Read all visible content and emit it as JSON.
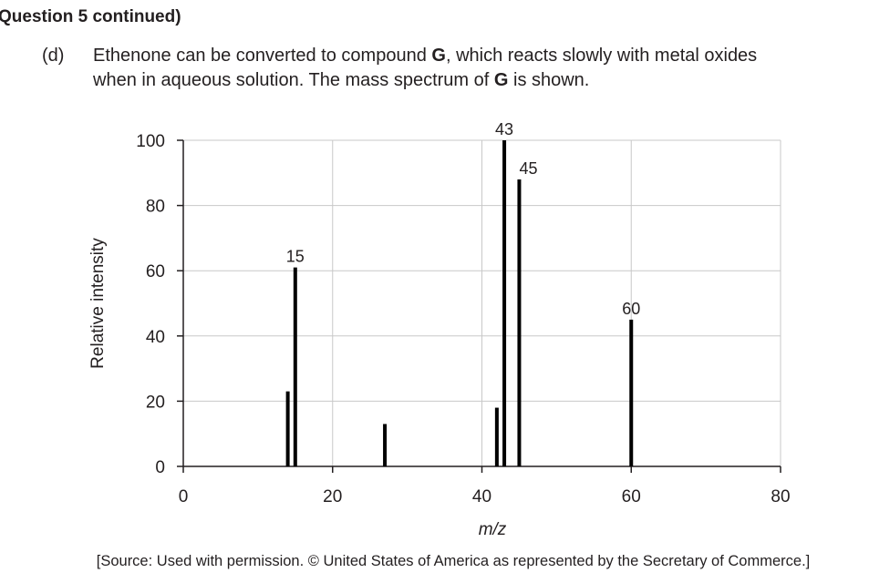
{
  "header": "Question 5 continued)",
  "question": {
    "label": "(d)",
    "lines": [
      [
        "Ethenone can be converted to compound ",
        "G",
        ", which reacts slowly with metal oxides"
      ],
      [
        "when in aqueous solution. The mass spectrum of ",
        "G",
        " is shown."
      ]
    ]
  },
  "source": "[Source: Used with permission. © United States of America as represented by the Secretary of Commerce.]",
  "chart_data": {
    "type": "bar",
    "x": [
      14,
      15,
      27,
      42,
      43,
      45,
      60
    ],
    "values": [
      23,
      61,
      13,
      18,
      100,
      88,
      45
    ],
    "labeled": [
      1,
      4,
      5,
      6
    ],
    "color": "#000000",
    "xlabel": "m/z",
    "ylabel": "Relative intensity",
    "xlim": [
      0,
      80
    ],
    "xticks": [
      0,
      20,
      40,
      60,
      80
    ],
    "ylim": [
      0,
      100
    ],
    "yticks": [
      0,
      20,
      40,
      60,
      80,
      100
    ],
    "grid": true
  }
}
